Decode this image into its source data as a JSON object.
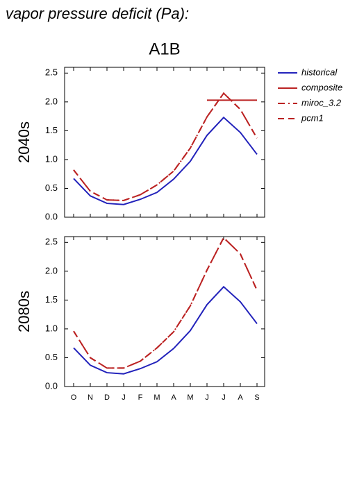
{
  "title": "vapor pressure deficit (Pa):",
  "subtitle": "A1B",
  "chart_data": [
    {
      "type": "line",
      "ylabel": "2040s",
      "categories": [
        null,
        null,
        null,
        null,
        null,
        null,
        null,
        null,
        null,
        null,
        null,
        null
      ],
      "ylim": [
        0,
        2.6
      ],
      "yticks": [
        {
          "value": 0,
          "label": "0.0"
        },
        0.5,
        {
          "value": 1,
          "label": "1.0"
        },
        1.5,
        {
          "value": 2,
          "label": "2.0"
        },
        2.5
      ],
      "legend": "outside-right",
      "series": [
        {
          "name": "historical",
          "color": "#2222bb",
          "linestyle": "solid",
          "values": [
            0.67,
            0.37,
            0.24,
            0.22,
            0.31,
            0.43,
            0.66,
            0.97,
            1.42,
            1.73,
            1.47,
            1.09
          ]
        },
        {
          "name": "composite",
          "color": "#bb2222",
          "linestyle": "solid",
          "values": [
            null,
            null,
            null,
            null,
            null,
            null,
            null,
            null,
            2.03,
            2.03,
            2.03,
            2.03
          ]
        },
        {
          "name": "miroc_3.2",
          "color": "#bb2222",
          "linestyle": "dashdot",
          "values": [
            0.82,
            0.45,
            0.3,
            0.29,
            0.39,
            0.56,
            0.8,
            1.2,
            1.74,
            2.15,
            1.87,
            1.37
          ]
        },
        {
          "name": "pcm1",
          "color": "#bb2222",
          "linestyle": "dash",
          "values": [
            0.82,
            0.45,
            0.3,
            0.29,
            0.39,
            0.56,
            0.8,
            1.2,
            1.74,
            2.15,
            1.87,
            1.37
          ]
        }
      ]
    },
    {
      "type": "line",
      "ylabel": "2080s",
      "categories": [
        "O",
        "N",
        "D",
        "J",
        "F",
        "M",
        "A",
        "M",
        "J",
        "J",
        "A",
        "S"
      ],
      "ylim": [
        0,
        2.6
      ],
      "yticks": [
        {
          "value": 0,
          "label": "0.0"
        },
        0.5,
        {
          "value": 1,
          "label": "1.0"
        },
        1.5,
        {
          "value": 2,
          "label": "2.0"
        },
        2.5
      ],
      "series": [
        {
          "color": "#2222bb",
          "linestyle": "solid",
          "values": [
            0.67,
            0.37,
            0.24,
            0.22,
            0.31,
            0.43,
            0.66,
            0.97,
            1.42,
            1.73,
            1.47,
            1.09
          ]
        },
        {
          "color": "#bb2222",
          "linestyle": "dashdot",
          "values": [
            0.96,
            0.5,
            0.32,
            0.32,
            0.44,
            0.67,
            0.95,
            1.4,
            2.02,
            2.58,
            2.3,
            1.67
          ]
        },
        {
          "color": "#bb2222",
          "linestyle": "dash",
          "values": [
            0.96,
            0.5,
            0.32,
            0.32,
            0.44,
            0.67,
            0.95,
            1.4,
            2.02,
            2.58,
            2.3,
            1.67
          ]
        }
      ]
    }
  ]
}
